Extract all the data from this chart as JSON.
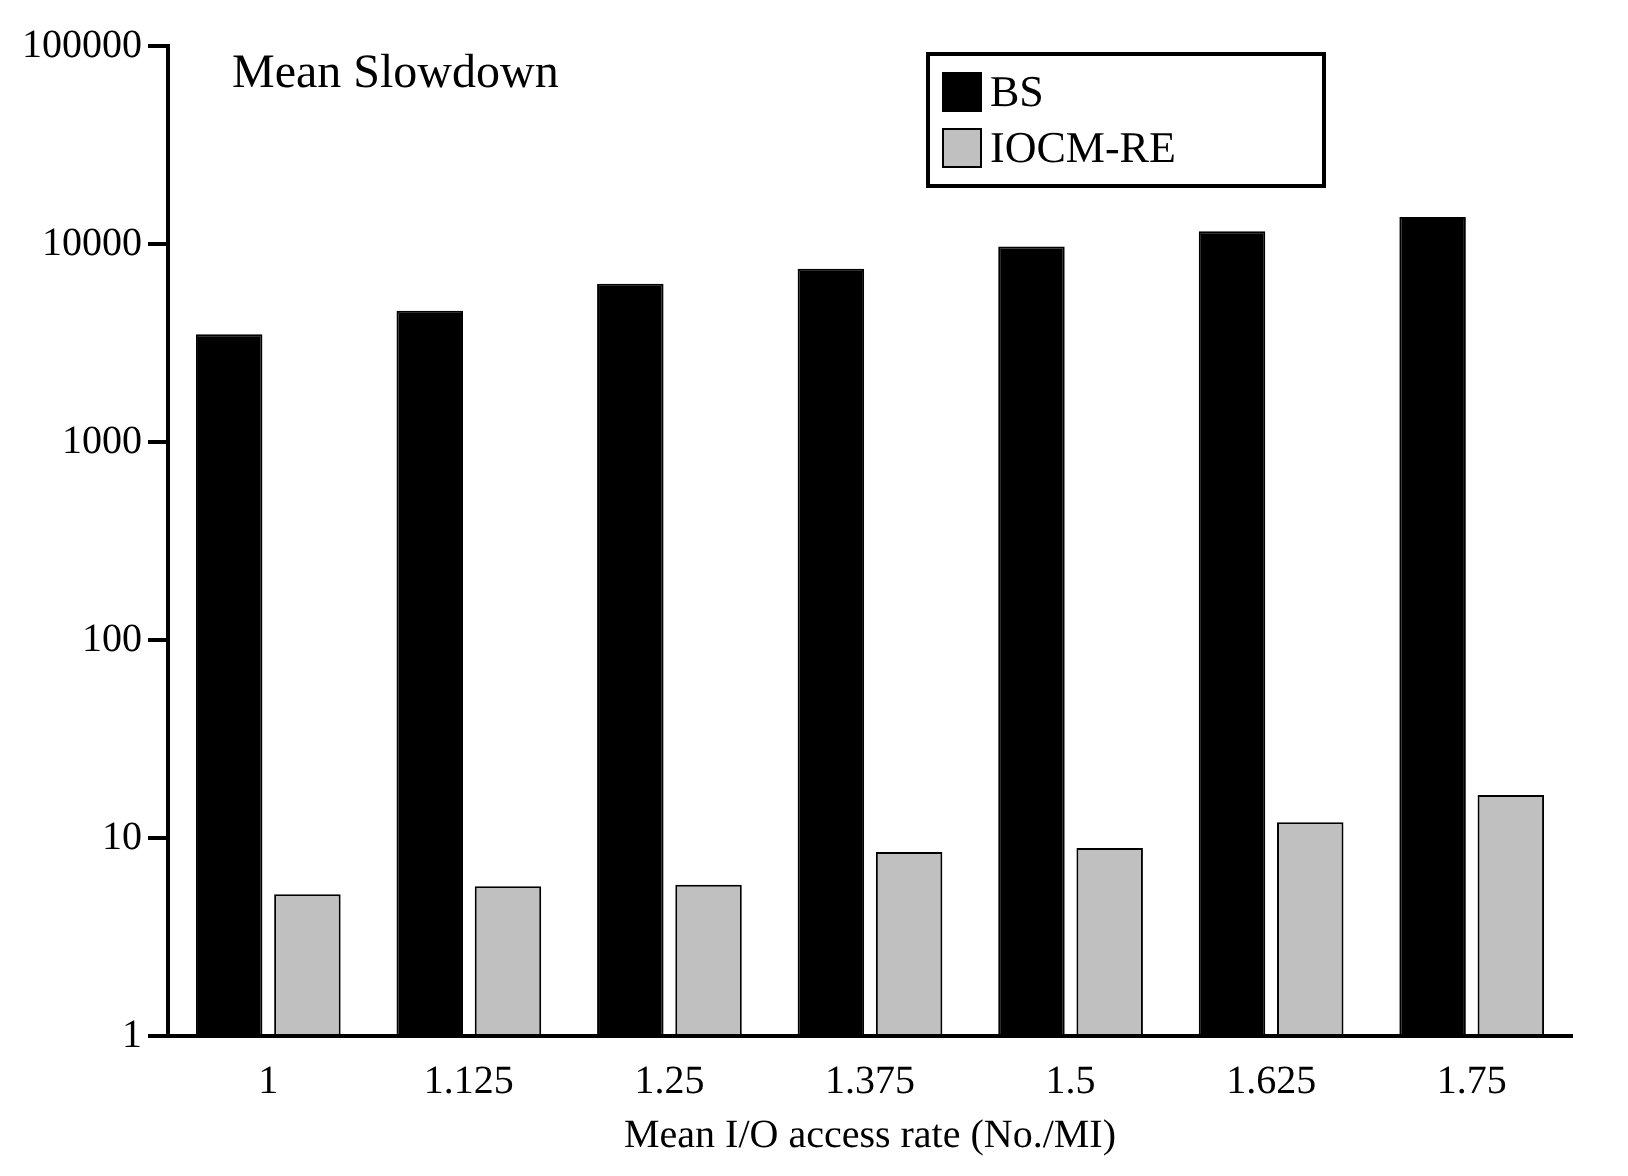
{
  "chart_data": {
    "type": "bar",
    "title": "Mean Slowdown",
    "xlabel": "Mean I/O access rate (No./MI)",
    "categories": [
      "1",
      "1.125",
      "1.25",
      "1.375",
      "1.5",
      "1.625",
      "1.75"
    ],
    "series": [
      {
        "name": "BS",
        "color": "#000000",
        "values": [
          3500,
          4600,
          6300,
          7500,
          9700,
          11600,
          13700
        ]
      },
      {
        "name": "IOCM-RE",
        "color": "#c0c0c0",
        "values": [
          5.2,
          5.7,
          5.8,
          8.5,
          8.9,
          12,
          16.5
        ]
      }
    ],
    "log": "y",
    "ylim": [
      1,
      100000
    ],
    "yticks": [
      1,
      10,
      100,
      1000,
      10000,
      100000
    ],
    "grid": false,
    "legend": "top right"
  }
}
